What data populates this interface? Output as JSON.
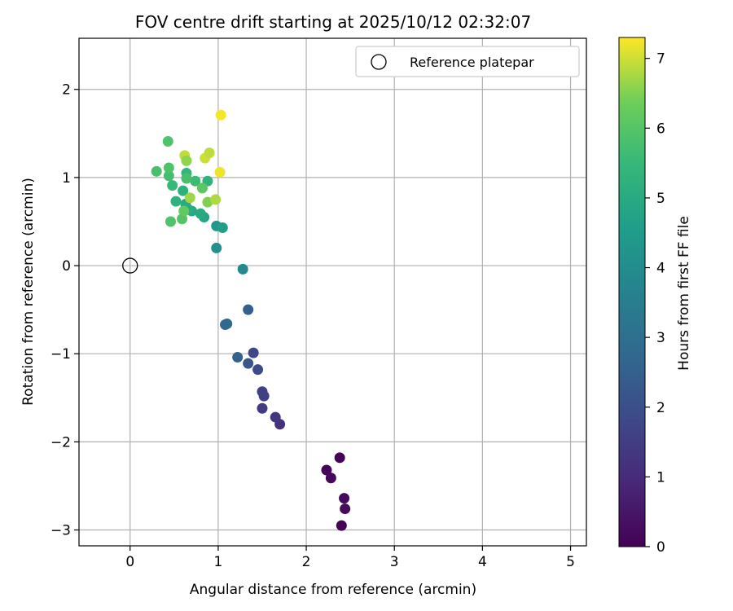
{
  "chart_data": {
    "type": "scatter",
    "title": "FOV centre drift starting at 2025/10/12 02:32:07",
    "xlabel": "Angular distance from reference (arcmin)",
    "ylabel": "Rotation from reference (arcmin)",
    "xlim": [
      -0.58,
      5.18
    ],
    "ylim": [
      -3.18,
      2.58
    ],
    "xticks": [
      0,
      1,
      2,
      3,
      4,
      5
    ],
    "yticks": [
      -3,
      -2,
      -1,
      0,
      1,
      2
    ],
    "grid": true,
    "legend": {
      "position": "top-right",
      "entries": [
        "Reference platepar"
      ]
    },
    "reference_point": {
      "x": 0,
      "y": 0
    },
    "colorbar": {
      "label": "Hours from first FF file",
      "range": [
        0,
        7.3
      ],
      "ticks": [
        0,
        1,
        2,
        3,
        4,
        5,
        6,
        7
      ],
      "colormap": "viridis"
    },
    "points": [
      {
        "x": 2.38,
        "y": -2.18,
        "c": 0.05
      },
      {
        "x": 2.23,
        "y": -2.32,
        "c": 0.1
      },
      {
        "x": 2.28,
        "y": -2.41,
        "c": 0.15
      },
      {
        "x": 2.43,
        "y": -2.64,
        "c": 0.2
      },
      {
        "x": 2.44,
        "y": -2.76,
        "c": 0.25
      },
      {
        "x": 2.4,
        "y": -2.95,
        "c": 0.1
      },
      {
        "x": 1.7,
        "y": -1.8,
        "c": 1.2
      },
      {
        "x": 1.65,
        "y": -1.72,
        "c": 1.35
      },
      {
        "x": 1.5,
        "y": -1.62,
        "c": 1.45
      },
      {
        "x": 1.52,
        "y": -1.48,
        "c": 1.55
      },
      {
        "x": 1.5,
        "y": -1.43,
        "c": 1.6
      },
      {
        "x": 1.45,
        "y": -1.18,
        "c": 1.9
      },
      {
        "x": 1.4,
        "y": -0.99,
        "c": 1.8
      },
      {
        "x": 1.34,
        "y": -1.11,
        "c": 2.2
      },
      {
        "x": 1.22,
        "y": -1.04,
        "c": 2.6
      },
      {
        "x": 1.34,
        "y": -0.5,
        "c": 2.5
      },
      {
        "x": 1.1,
        "y": -0.66,
        "c": 2.8
      },
      {
        "x": 1.08,
        "y": -0.67,
        "c": 2.75
      },
      {
        "x": 1.28,
        "y": -0.04,
        "c": 3.9
      },
      {
        "x": 0.98,
        "y": 0.2,
        "c": 4.1
      },
      {
        "x": 0.98,
        "y": 0.45,
        "c": 4.3
      },
      {
        "x": 1.05,
        "y": 0.43,
        "c": 4.6
      },
      {
        "x": 0.84,
        "y": 0.55,
        "c": 4.8
      },
      {
        "x": 0.8,
        "y": 0.59,
        "c": 5.0
      },
      {
        "x": 0.7,
        "y": 0.62,
        "c": 4.9
      },
      {
        "x": 0.66,
        "y": 0.64,
        "c": 5.1
      },
      {
        "x": 0.63,
        "y": 0.7,
        "c": 5.0
      },
      {
        "x": 0.52,
        "y": 0.73,
        "c": 5.3
      },
      {
        "x": 0.6,
        "y": 0.85,
        "c": 5.2
      },
      {
        "x": 0.48,
        "y": 0.91,
        "c": 5.5
      },
      {
        "x": 0.88,
        "y": 0.96,
        "c": 5.3
      },
      {
        "x": 0.64,
        "y": 1.05,
        "c": 5.4
      },
      {
        "x": 0.74,
        "y": 0.96,
        "c": 5.6
      },
      {
        "x": 0.64,
        "y": 0.99,
        "c": 5.8
      },
      {
        "x": 0.44,
        "y": 1.02,
        "c": 5.7
      },
      {
        "x": 0.3,
        "y": 1.07,
        "c": 5.8
      },
      {
        "x": 0.44,
        "y": 1.11,
        "c": 5.9
      },
      {
        "x": 0.43,
        "y": 1.41,
        "c": 5.9
      },
      {
        "x": 0.46,
        "y": 0.5,
        "c": 5.9
      },
      {
        "x": 0.59,
        "y": 0.53,
        "c": 6.0
      },
      {
        "x": 0.61,
        "y": 0.62,
        "c": 6.2
      },
      {
        "x": 0.82,
        "y": 0.88,
        "c": 6.1
      },
      {
        "x": 0.62,
        "y": 1.25,
        "c": 6.9
      },
      {
        "x": 0.64,
        "y": 1.19,
        "c": 6.6
      },
      {
        "x": 0.68,
        "y": 0.77,
        "c": 6.7
      },
      {
        "x": 0.88,
        "y": 0.72,
        "c": 6.5
      },
      {
        "x": 0.97,
        "y": 0.75,
        "c": 6.8
      },
      {
        "x": 0.85,
        "y": 1.22,
        "c": 7.0
      },
      {
        "x": 0.9,
        "y": 1.28,
        "c": 6.9
      },
      {
        "x": 1.02,
        "y": 1.06,
        "c": 7.2
      },
      {
        "x": 1.03,
        "y": 1.71,
        "c": 7.25
      }
    ]
  }
}
